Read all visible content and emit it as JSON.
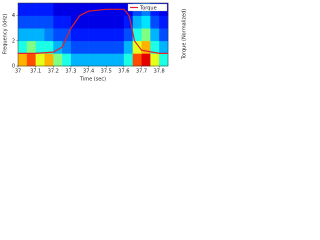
{
  "chart_data": {
    "type": "heatmap",
    "x_label": "Time (sec)",
    "y_label": "Frequency (kHz)",
    "y2_label": "Torque (Normalized)",
    "xlim": [
      37,
      37.85
    ],
    "xticks": [
      37,
      37.1,
      37.2,
      37.3,
      37.4,
      37.5,
      37.6,
      37.7,
      37.8
    ],
    "ylim": [
      0,
      5
    ],
    "yticks": [
      0,
      2,
      4
    ],
    "y2lim": [
      0,
      1
    ],
    "zlim": [
      0,
      1
    ],
    "z": [
      [
        0.7,
        0.8,
        0.6,
        0.7,
        0.5,
        0.4,
        0.3,
        0.3,
        0.3,
        0.3,
        0.3,
        0.3,
        0.4,
        0.8,
        0.9,
        0.6,
        0.4
      ],
      [
        0.4,
        0.5,
        0.4,
        0.4,
        0.3,
        0.25,
        0.2,
        0.2,
        0.2,
        0.2,
        0.2,
        0.2,
        0.3,
        0.6,
        0.7,
        0.4,
        0.3
      ],
      [
        0.3,
        0.3,
        0.3,
        0.25,
        0.2,
        0.2,
        0.15,
        0.15,
        0.15,
        0.15,
        0.15,
        0.15,
        0.2,
        0.4,
        0.5,
        0.3,
        0.2
      ],
      [
        0.2,
        0.2,
        0.2,
        0.2,
        0.15,
        0.15,
        0.1,
        0.1,
        0.1,
        0.1,
        0.1,
        0.1,
        0.15,
        0.3,
        0.35,
        0.2,
        0.15
      ],
      [
        0.15,
        0.15,
        0.15,
        0.15,
        0.1,
        0.1,
        0.1,
        0.1,
        0.1,
        0.1,
        0.1,
        0.1,
        0.1,
        0.2,
        0.25,
        0.15,
        0.1
      ]
    ],
    "series": [
      {
        "name": "Torque",
        "type": "line",
        "axis": "y2",
        "color": "#e0202a",
        "x": [
          37,
          37.1,
          37.2,
          37.25,
          37.3,
          37.35,
          37.4,
          37.5,
          37.6,
          37.63,
          37.66,
          37.7,
          37.8,
          37.85
        ],
        "values": [
          0.2,
          0.2,
          0.22,
          0.3,
          0.6,
          0.8,
          0.87,
          0.9,
          0.9,
          0.8,
          0.4,
          0.25,
          0.2,
          0.2
        ]
      }
    ],
    "legend": "upper right"
  }
}
